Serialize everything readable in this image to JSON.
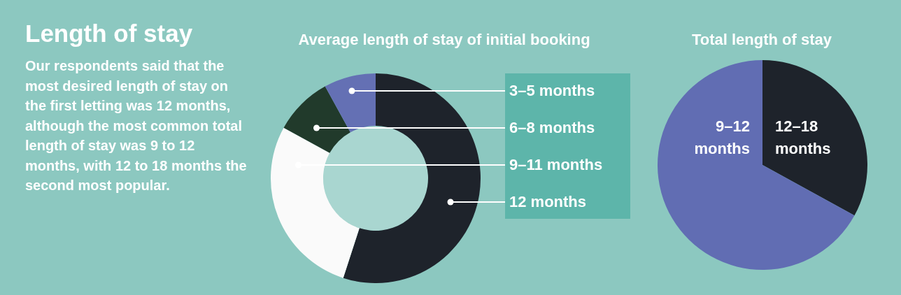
{
  "chart_data": [
    {
      "type": "other",
      "title": "Length of stay",
      "annotations": [
        "Our respondents said that the most desired length of stay on the first letting was 12 months, although the most common total length of stay was 9 to 12 months, with 12 to 18 months the second most popular."
      ]
    },
    {
      "type": "donut",
      "title": "Average length of stay of initial booking",
      "categories": [
        "3–5 months",
        "6–8 months",
        "9–11 months",
        "12 months"
      ],
      "values": [
        8,
        9,
        28,
        55
      ],
      "colors": [
        "#6470b4",
        "#213a2b",
        "#fafafa",
        "#1e232b"
      ]
    },
    {
      "type": "pie",
      "title": "Total length of stay",
      "categories": [
        "9–12 months",
        "12–18 months"
      ],
      "values": [
        67,
        33
      ],
      "colors": [
        "#616db3",
        "#1e232b"
      ]
    }
  ]
}
